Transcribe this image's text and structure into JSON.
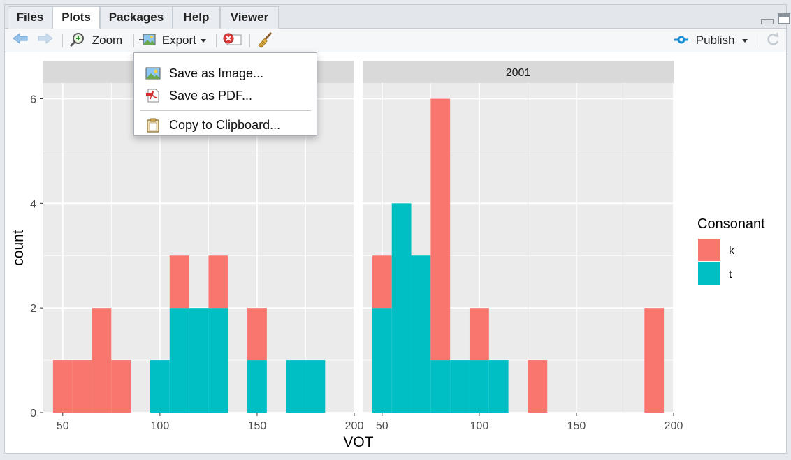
{
  "tabs": [
    {
      "label": "Files",
      "active": false
    },
    {
      "label": "Plots",
      "active": true
    },
    {
      "label": "Packages",
      "active": false
    },
    {
      "label": "Help",
      "active": false
    },
    {
      "label": "Viewer",
      "active": false
    }
  ],
  "toolbar": {
    "zoom_label": "Zoom",
    "export_label": "Export",
    "publish_label": "Publish"
  },
  "export_menu": {
    "items": [
      {
        "label": "Save as Image...",
        "icon": "image-icon"
      },
      {
        "label": "Save as PDF...",
        "icon": "pdf-icon"
      },
      {
        "label": "Copy to Clipboard...",
        "icon": "clipboard-icon"
      }
    ]
  },
  "colors": {
    "k": "#F8766D",
    "t": "#00BFC4",
    "panel": "#EBEBEB",
    "strip": "#D9D9D9",
    "grid": "#FFFFFF",
    "accent": "#1a8fd6"
  },
  "chart_data": {
    "type": "bar",
    "subtype": "stacked histogram, faceted",
    "xlabel": "VOT",
    "ylabel": "count",
    "xlim": [
      40,
      200
    ],
    "ylim": [
      0,
      6.3
    ],
    "x_ticks": [
      50,
      100,
      150,
      200
    ],
    "y_ticks": [
      0,
      2,
      4,
      6
    ],
    "bin_width": 10,
    "legend": {
      "title": "Consonant",
      "position": "right",
      "entries": [
        {
          "name": "k",
          "color": "#F8766D"
        },
        {
          "name": "t",
          "color": "#00BFC4"
        }
      ]
    },
    "facets": [
      {
        "label": "",
        "bins": [
          {
            "x": 50,
            "k": 1,
            "t": 0
          },
          {
            "x": 60,
            "k": 1,
            "t": 0
          },
          {
            "x": 70,
            "k": 2,
            "t": 0
          },
          {
            "x": 80,
            "k": 1,
            "t": 0
          },
          {
            "x": 100,
            "k": 0,
            "t": 1
          },
          {
            "x": 110,
            "k": 1,
            "t": 2
          },
          {
            "x": 120,
            "k": 0,
            "t": 2
          },
          {
            "x": 130,
            "k": 1,
            "t": 2
          },
          {
            "x": 150,
            "k": 1,
            "t": 1
          },
          {
            "x": 170,
            "k": 0,
            "t": 1
          },
          {
            "x": 180,
            "k": 0,
            "t": 1
          }
        ]
      },
      {
        "label": "2001",
        "bins": [
          {
            "x": 50,
            "k": 1,
            "t": 2
          },
          {
            "x": 60,
            "k": 0,
            "t": 4
          },
          {
            "x": 70,
            "k": 0,
            "t": 3
          },
          {
            "x": 80,
            "k": 5,
            "t": 1
          },
          {
            "x": 90,
            "k": 0,
            "t": 1
          },
          {
            "x": 100,
            "k": 1,
            "t": 1
          },
          {
            "x": 110,
            "k": 0,
            "t": 1
          },
          {
            "x": 130,
            "k": 1,
            "t": 0
          },
          {
            "x": 190,
            "k": 2,
            "t": 0
          }
        ]
      }
    ]
  }
}
